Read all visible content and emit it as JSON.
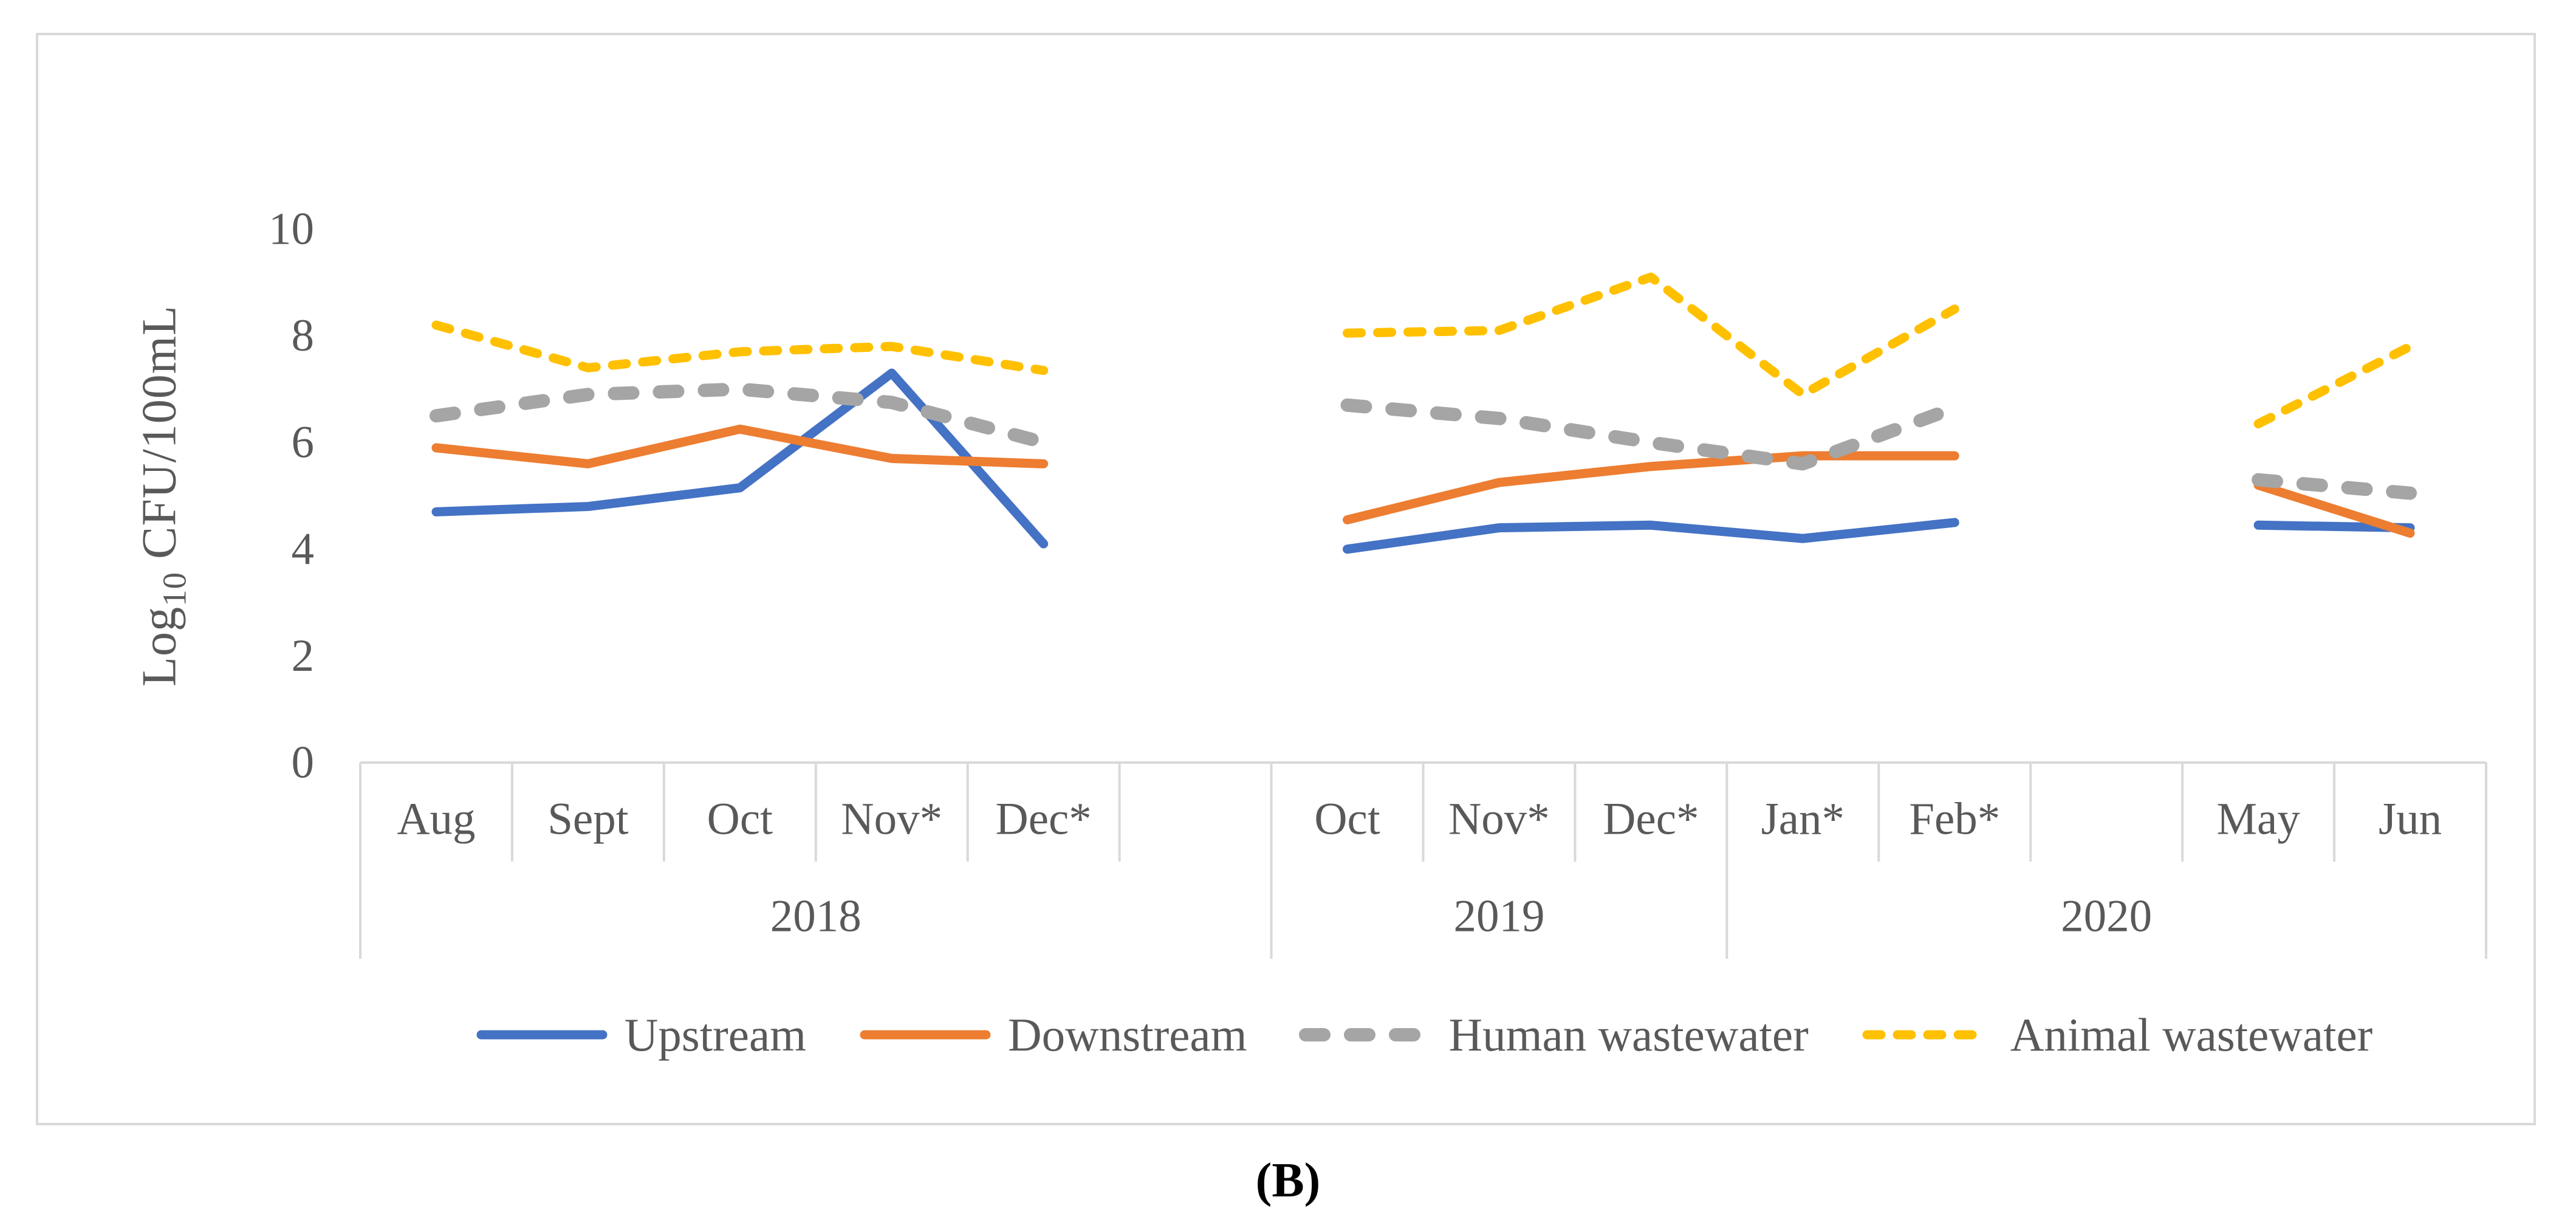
{
  "figure": {
    "caption": "(B)"
  },
  "axis": {
    "title": {
      "pre": "Log",
      "sub": "10",
      "post": " CFU/100mL"
    }
  },
  "colors": {
    "axis_line": "#D9D9D9",
    "text": "#595959",
    "upstream": "#4472C4",
    "downstream": "#ED7D31",
    "human_wastewater": "#A5A5A5",
    "animal_wastewater": "#FFC000"
  },
  "chart_data": {
    "type": "line",
    "title": "",
    "xlabel": "",
    "ylabel": "Log10 CFU/100mL",
    "ylim": [
      0,
      10
    ],
    "y_ticks": [
      10,
      8,
      6,
      4,
      2,
      0
    ],
    "grid": false,
    "legend_position": "bottom",
    "categories": [
      "Aug",
      "Sept",
      "Oct",
      "Nov*",
      "Dec*",
      "",
      "Oct",
      "Nov*",
      "Dec*",
      "Jan*",
      "Feb*",
      "",
      "May",
      "Jun"
    ],
    "year_groups": [
      {
        "label": "2018",
        "start": 0,
        "end": 6
      },
      {
        "label": "2019",
        "start": 6,
        "end": 9
      },
      {
        "label": "2020",
        "start": 9,
        "end": 14
      }
    ],
    "series": [
      {
        "name": "Upstream",
        "color": "#4472C4",
        "style": "solid",
        "values": [
          4.7,
          4.8,
          5.15,
          7.3,
          4.1,
          null,
          4.0,
          4.4,
          4.45,
          4.2,
          4.5,
          null,
          4.45,
          4.4
        ]
      },
      {
        "name": "Downstream",
        "color": "#ED7D31",
        "style": "solid",
        "values": [
          5.9,
          5.6,
          6.25,
          5.7,
          5.6,
          null,
          4.55,
          5.25,
          5.55,
          5.75,
          5.75,
          null,
          5.2,
          4.3
        ]
      },
      {
        "name": "Human wastewater",
        "color": "#A5A5A5",
        "style": "dashed-long",
        "values": [
          6.5,
          6.9,
          7.0,
          6.75,
          6.0,
          null,
          6.7,
          6.45,
          6.0,
          5.6,
          6.65,
          null,
          5.3,
          5.05
        ]
      },
      {
        "name": "Animal wastewater",
        "color": "#FFC000",
        "style": "dashed-short",
        "values": [
          8.2,
          7.4,
          7.7,
          7.8,
          7.35,
          null,
          8.05,
          8.1,
          9.1,
          6.9,
          8.5,
          null,
          6.35,
          7.8
        ]
      }
    ]
  }
}
